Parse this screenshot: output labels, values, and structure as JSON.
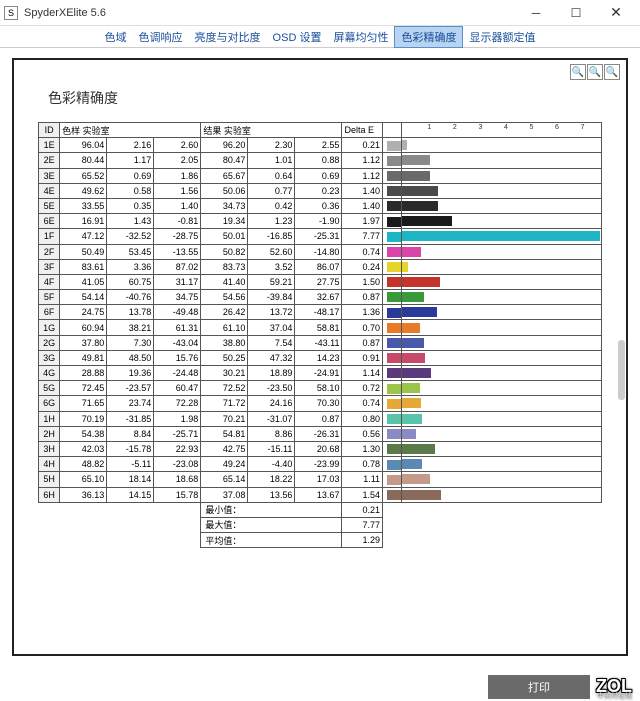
{
  "window": {
    "title": "SpyderXElite 5.6",
    "appicon": "S"
  },
  "menu": {
    "items": [
      "色域",
      "色调响应",
      "亮度与对比度",
      "OSD 设置",
      "屏幕均匀性",
      "色彩精确度",
      "显示器额定值"
    ],
    "active": 5
  },
  "heading": "色彩精确度",
  "headers": {
    "id": "ID",
    "sample": "色样 实验室",
    "result": "结果 实验室",
    "delta": "Delta E"
  },
  "chart": {
    "ticks": [
      1,
      2,
      3,
      4,
      5,
      6,
      7
    ],
    "max": 7.8
  },
  "rows": [
    {
      "id": "1E",
      "s": [
        96.04,
        2.16,
        2.6
      ],
      "r": [
        96.2,
        2.3,
        2.55
      ],
      "de": 0.21,
      "c": "#b0b0b0"
    },
    {
      "id": "2E",
      "s": [
        80.44,
        1.17,
        2.05
      ],
      "r": [
        80.47,
        1.01,
        0.88
      ],
      "de": 1.12,
      "c": "#8a8a8a"
    },
    {
      "id": "3E",
      "s": [
        65.52,
        0.69,
        1.86
      ],
      "r": [
        65.67,
        0.64,
        0.69
      ],
      "de": 1.12,
      "c": "#6a6a6a"
    },
    {
      "id": "4E",
      "s": [
        49.62,
        0.58,
        1.56
      ],
      "r": [
        50.06,
        0.77,
        0.23
      ],
      "de": 1.4,
      "c": "#4a4a4a"
    },
    {
      "id": "5E",
      "s": [
        33.55,
        0.35,
        1.4
      ],
      "r": [
        34.73,
        0.42,
        0.36
      ],
      "de": 1.4,
      "c": "#2a2a2a"
    },
    {
      "id": "6E",
      "s": [
        16.91,
        1.43,
        -0.81
      ],
      "r": [
        19.34,
        1.23,
        -1.9
      ],
      "de": 1.97,
      "c": "#1a1a1a"
    },
    {
      "id": "1F",
      "s": [
        47.12,
        -32.52,
        -28.75
      ],
      "r": [
        50.01,
        -16.85,
        -25.31
      ],
      "de": 7.77,
      "c": "#1fb5c4"
    },
    {
      "id": "2F",
      "s": [
        50.49,
        53.45,
        -13.55
      ],
      "r": [
        50.82,
        52.6,
        -14.8
      ],
      "de": 0.74,
      "c": "#d946a8"
    },
    {
      "id": "3F",
      "s": [
        83.61,
        3.36,
        87.02
      ],
      "r": [
        83.73,
        3.52,
        86.07
      ],
      "de": 0.24,
      "c": "#e8d428"
    },
    {
      "id": "4F",
      "s": [
        41.05,
        60.75,
        31.17
      ],
      "r": [
        41.4,
        59.21,
        27.75
      ],
      "de": 1.5,
      "c": "#c4342a"
    },
    {
      "id": "5F",
      "s": [
        54.14,
        -40.76,
        34.75
      ],
      "r": [
        54.56,
        -39.84,
        32.67
      ],
      "de": 0.87,
      "c": "#3a9a3a"
    },
    {
      "id": "6F",
      "s": [
        24.75,
        13.78,
        -49.48
      ],
      "r": [
        26.42,
        13.72,
        -48.17
      ],
      "de": 1.36,
      "c": "#2a3a9a"
    },
    {
      "id": "1G",
      "s": [
        60.94,
        38.21,
        61.31
      ],
      "r": [
        61.1,
        37.04,
        58.81
      ],
      "de": 0.7,
      "c": "#e87a28"
    },
    {
      "id": "2G",
      "s": [
        37.8,
        7.3,
        -43.04
      ],
      "r": [
        38.8,
        7.54,
        -43.11
      ],
      "de": 0.87,
      "c": "#4a5aaa"
    },
    {
      "id": "3G",
      "s": [
        49.81,
        48.5,
        15.76
      ],
      "r": [
        50.25,
        47.32,
        14.23
      ],
      "de": 0.91,
      "c": "#c84a6a"
    },
    {
      "id": "4G",
      "s": [
        28.88,
        19.36,
        -24.48
      ],
      "r": [
        30.21,
        18.89,
        -24.91
      ],
      "de": 1.14,
      "c": "#5a3a7a"
    },
    {
      "id": "5G",
      "s": [
        72.45,
        -23.57,
        60.47
      ],
      "r": [
        72.52,
        -23.5,
        58.1
      ],
      "de": 0.72,
      "c": "#9ac44a"
    },
    {
      "id": "6G",
      "s": [
        71.65,
        23.74,
        72.28
      ],
      "r": [
        71.72,
        24.16,
        70.3
      ],
      "de": 0.74,
      "c": "#e8a838"
    },
    {
      "id": "1H",
      "s": [
        70.19,
        -31.85,
        1.98
      ],
      "r": [
        70.21,
        -31.07,
        0.87
      ],
      "de": 0.8,
      "c": "#5ac4aa"
    },
    {
      "id": "2H",
      "s": [
        54.38,
        8.84,
        -25.71
      ],
      "r": [
        54.81,
        8.86,
        -26.31
      ],
      "de": 0.56,
      "c": "#8a8ac4"
    },
    {
      "id": "3H",
      "s": [
        42.03,
        -15.78,
        22.93
      ],
      "r": [
        42.75,
        -15.11,
        20.68
      ],
      "de": 1.3,
      "c": "#5a7a4a"
    },
    {
      "id": "4H",
      "s": [
        48.82,
        -5.11,
        -23.08
      ],
      "r": [
        49.24,
        -4.4,
        -23.99
      ],
      "de": 0.78,
      "c": "#5a8ab4"
    },
    {
      "id": "5H",
      "s": [
        65.1,
        18.14,
        18.68
      ],
      "r": [
        65.14,
        18.22,
        17.03
      ],
      "de": 1.11,
      "c": "#c49a8a"
    },
    {
      "id": "6H",
      "s": [
        36.13,
        14.15,
        15.78
      ],
      "r": [
        37.08,
        13.56,
        13.67
      ],
      "de": 1.54,
      "c": "#8a6a5a"
    }
  ],
  "stats": {
    "min_label": "最小值：",
    "min": 0.21,
    "max_label": "最大值：",
    "max": 7.77,
    "avg_label": "平均值：",
    "avg": 1.29
  },
  "footer": {
    "print": "打印"
  },
  "watermark": {
    "logo": "ZOL",
    "sub": "中关村在线"
  }
}
